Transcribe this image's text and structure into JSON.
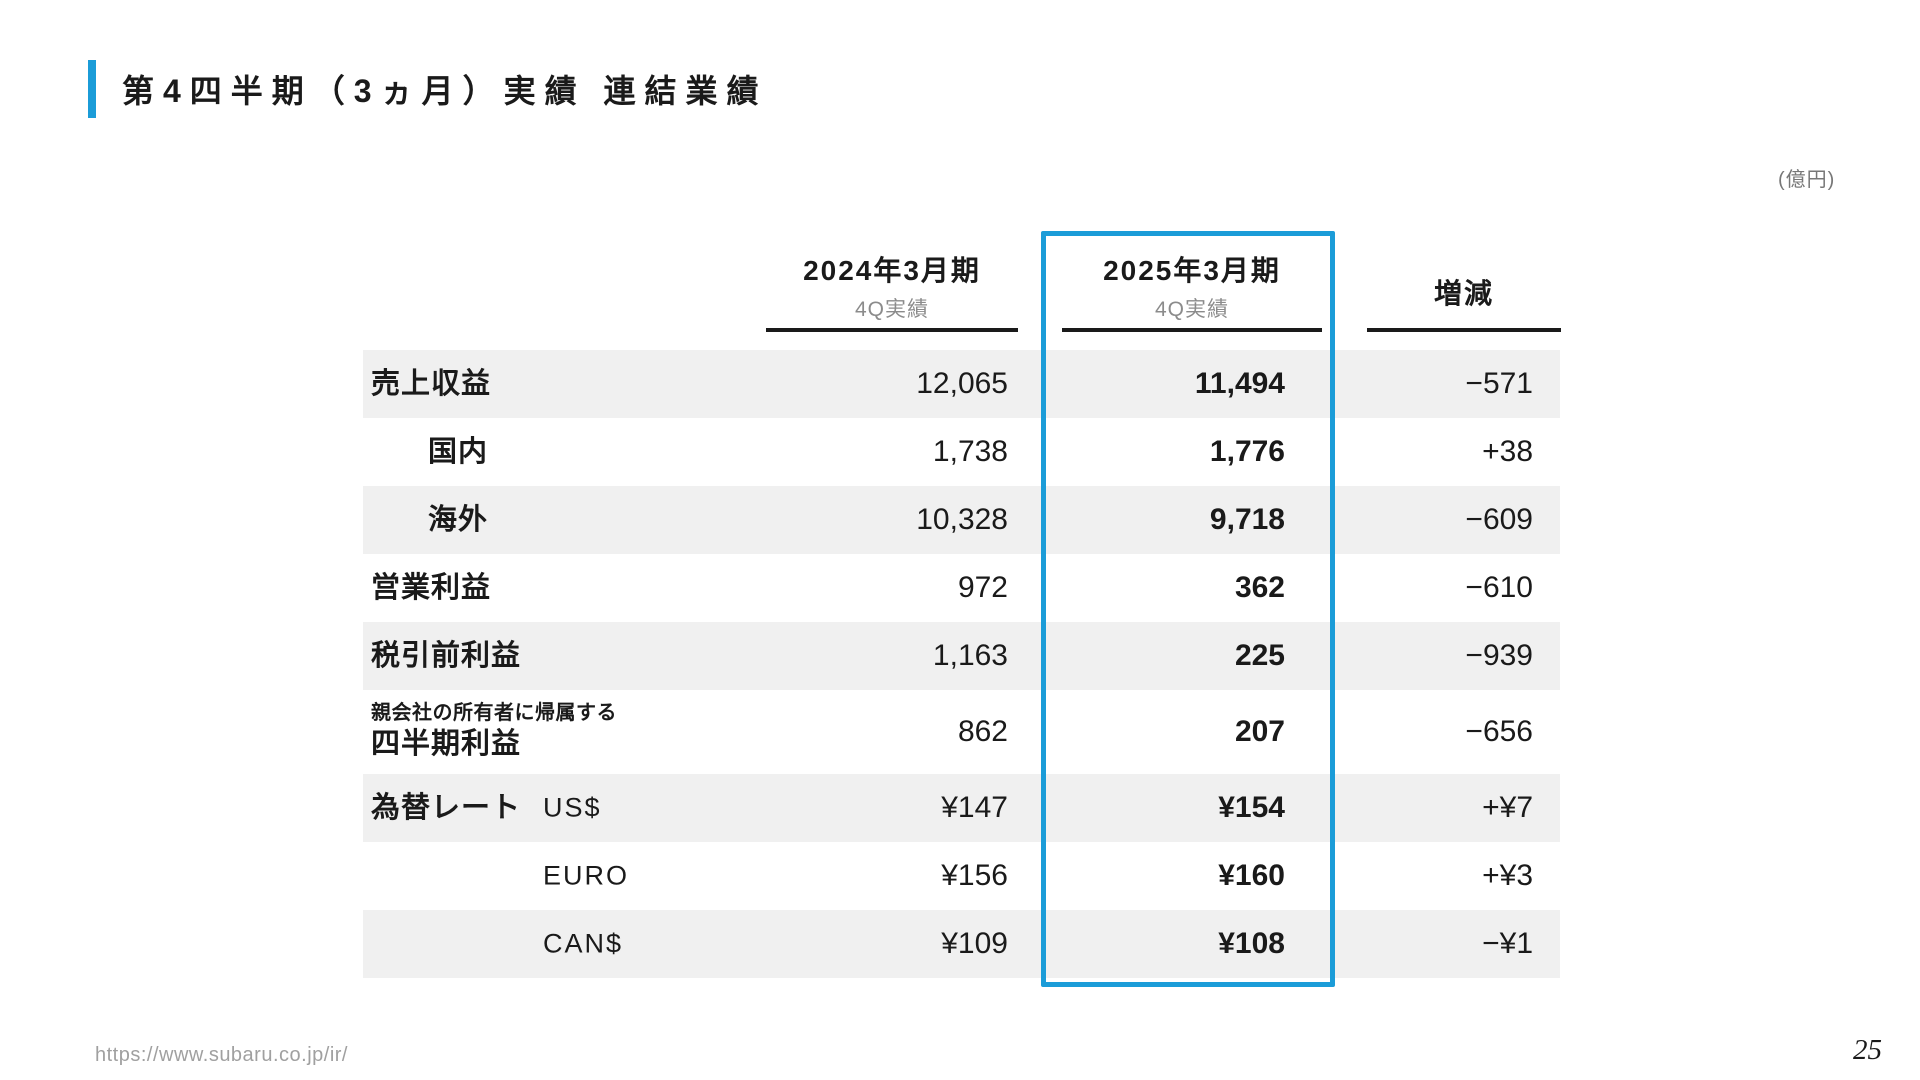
{
  "page": {
    "title": "第4四半期（3ヵ月）実績 連結業績",
    "unit_note": "(億円)",
    "footer_url": "https://www.subaru.co.jp/ir/",
    "page_number": "25"
  },
  "table": {
    "columns": [
      {
        "label": "2024年3月期",
        "sublabel": "4Q実績",
        "highlighted": false
      },
      {
        "label": "2025年3月期",
        "sublabel": "4Q実績",
        "highlighted": true
      },
      {
        "label": "増減",
        "sublabel": "",
        "highlighted": false
      }
    ],
    "rows": [
      {
        "label": "売上収益",
        "fy2024": "12,065",
        "fy2025": "11,494",
        "diff": "−571",
        "shaded": true
      },
      {
        "label": "国内",
        "indent": true,
        "fy2024": "1,738",
        "fy2025": "1,776",
        "diff": "+38",
        "shaded": false
      },
      {
        "label": "海外",
        "indent": true,
        "fy2024": "10,328",
        "fy2025": "9,718",
        "diff": "−609",
        "shaded": true
      },
      {
        "label": "営業利益",
        "fy2024": "972",
        "fy2025": "362",
        "diff": "−610",
        "shaded": false
      },
      {
        "label": "税引前利益",
        "fy2024": "1,163",
        "fy2025": "225",
        "diff": "−939",
        "shaded": true
      },
      {
        "label_small": "親会社の所有者に帰属する",
        "label": "四半期利益",
        "fy2024": "862",
        "fy2025": "207",
        "diff": "−656",
        "shaded": false,
        "tall": true
      },
      {
        "label": "為替レート",
        "currency": "US$",
        "fy2024": "¥147",
        "fy2025": "¥154",
        "diff": "+¥7",
        "shaded": true
      },
      {
        "label": "",
        "currency": "EURO",
        "fy2024": "¥156",
        "fy2025": "¥160",
        "diff": "+¥3",
        "shaded": false
      },
      {
        "label": "",
        "currency": "CAN$",
        "fy2024": "¥109",
        "fy2025": "¥108",
        "diff": "−¥1",
        "shaded": true
      }
    ]
  },
  "colors": {
    "accent_blue": "#1b9cd8",
    "row_shade": "#f0f0f0",
    "text": "#1a1a1a",
    "muted_text": "#8b8b8b"
  }
}
